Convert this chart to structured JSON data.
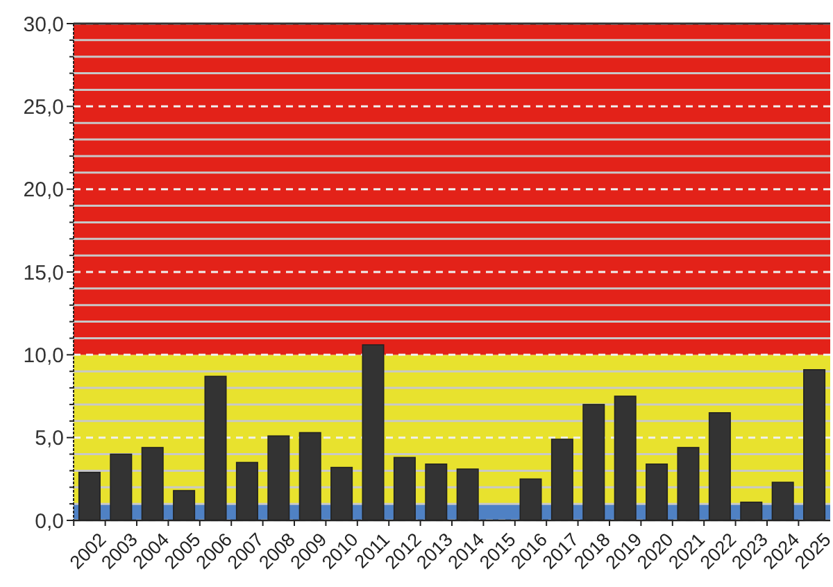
{
  "chart_data": {
    "type": "bar",
    "categories": [
      "2002",
      "2003",
      "2004",
      "2005",
      "2006",
      "2007",
      "2008",
      "2009",
      "2010",
      "2011",
      "2012",
      "2013",
      "2014",
      "2015",
      "2016",
      "2017",
      "2018",
      "2019",
      "2020",
      "2021",
      "2022",
      "2023",
      "2024",
      "2025"
    ],
    "values": [
      2.9,
      4.0,
      4.4,
      1.8,
      8.7,
      3.5,
      5.1,
      5.3,
      3.2,
      10.6,
      3.8,
      3.4,
      3.1,
      0,
      2.5,
      4.9,
      7.0,
      7.5,
      3.4,
      4.4,
      6.5,
      1.1,
      2.3,
      9.1
    ],
    "color": "#333333",
    "ylim": [
      0,
      30
    ],
    "yticks": [
      {
        "value": 0,
        "label": "0,0"
      },
      {
        "value": 1,
        "label": null
      },
      {
        "value": 2,
        "label": null
      },
      {
        "value": 3,
        "label": null
      },
      {
        "value": 4,
        "label": null
      },
      {
        "value": 5,
        "label": "5,0"
      },
      {
        "value": 6,
        "label": null
      },
      {
        "value": 7,
        "label": null
      },
      {
        "value": 8,
        "label": null
      },
      {
        "value": 9,
        "label": null
      },
      {
        "value": 10,
        "label": "10,0"
      },
      {
        "value": 11,
        "label": null
      },
      {
        "value": 12,
        "label": null
      },
      {
        "value": 13,
        "label": null
      },
      {
        "value": 14,
        "label": null
      },
      {
        "value": 15,
        "label": "15,0"
      },
      {
        "value": 16,
        "label": null
      },
      {
        "value": 17,
        "label": null
      },
      {
        "value": 18,
        "label": null
      },
      {
        "value": 19,
        "label": null
      },
      {
        "value": 20,
        "label": "20,0"
      },
      {
        "value": 21,
        "label": null
      },
      {
        "value": 22,
        "label": null
      },
      {
        "value": 23,
        "label": null
      },
      {
        "value": 24,
        "label": null
      },
      {
        "value": 25,
        "label": "25,0"
      },
      {
        "value": 26,
        "label": null
      },
      {
        "value": 27,
        "label": null
      },
      {
        "value": 28,
        "label": null
      },
      {
        "value": 29,
        "label": null
      },
      {
        "value": 30,
        "label": "30,0"
      }
    ],
    "grid": "y",
    "bands": [
      {
        "axis": "y",
        "from": 0,
        "to": 1,
        "color": "#4f81c4"
      },
      {
        "axis": "y",
        "from": 1,
        "to": 10,
        "color": "#e8e22e"
      },
      {
        "axis": "y",
        "from": 10,
        "to": 30,
        "color": "#e32219"
      }
    ]
  }
}
